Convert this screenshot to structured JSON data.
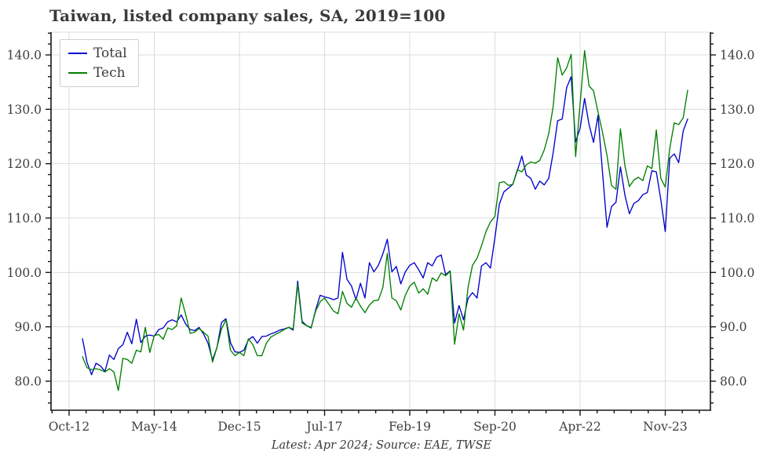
{
  "title": "Taiwan, listed company sales, SA, 2019=100",
  "caption": "Latest: Apr 2024; Source: EAE, TWSE",
  "legend": [
    {
      "label": "Total",
      "color": "#0000cd"
    },
    {
      "label": "Tech",
      "color": "#008000"
    }
  ],
  "colors": {
    "grid": "#dcdcdc",
    "spine": "#16161d",
    "tick_label": "#3d3d3d",
    "total_line": "#0000cd",
    "tech_line": "#008000"
  },
  "chart_data": {
    "type": "line",
    "title": "Taiwan, listed company sales, SA, 2019=100",
    "x_axis": {
      "freq": "monthly",
      "start": "Jan-2013",
      "end": "Apr-2024",
      "major_tick_labels": [
        "Oct-12",
        "May-14",
        "Dec-15",
        "Jul-17",
        "Feb-19",
        "Sep-20",
        "Apr-22",
        "Nov-23"
      ],
      "major_tick_months": [
        0,
        19,
        38,
        57,
        76,
        95,
        114,
        133
      ],
      "minor_tick_step_months": 3.8
    },
    "y_axis": {
      "major_ticks": [
        80,
        90,
        100,
        110,
        120,
        130,
        140
      ],
      "major_tick_labels": [
        "80.0",
        "90.0",
        "100.0",
        "110.0",
        "120.0",
        "130.0",
        "140.0"
      ],
      "minor_tick_step": 2,
      "range": [
        74.7,
        144.2
      ],
      "labels_on_both_sides": true,
      "grid": true
    },
    "legend_position": "upper-left",
    "series": [
      {
        "name": "Total",
        "color": "#0000cd",
        "start_month_offset": 3,
        "values": [
          87.8,
          83.5,
          81.2,
          83.3,
          82.8,
          81.8,
          84.8,
          84.0,
          86.0,
          86.7,
          89.0,
          86.9,
          91.4,
          87.1,
          88.3,
          88.5,
          88.3,
          89.5,
          89.8,
          90.9,
          91.3,
          90.9,
          92.2,
          90.5,
          89.5,
          89.3,
          89.9,
          88.7,
          87.0,
          83.9,
          86.2,
          90.8,
          91.5,
          87.1,
          85.4,
          85.3,
          85.7,
          87.6,
          88.2,
          87.0,
          88.2,
          88.3,
          88.7,
          89.0,
          89.4,
          89.6,
          89.9,
          89.4,
          98.4,
          91.0,
          90.2,
          89.8,
          93.1,
          95.8,
          95.5,
          95.3,
          95.0,
          95.3,
          103.7,
          98.7,
          97.5,
          95.0,
          98.0,
          95.3,
          101.8,
          100.1,
          101.3,
          103.4,
          106.1,
          100.1,
          101.1,
          97.9,
          100.1,
          101.3,
          101.8,
          100.5,
          99.0,
          101.8,
          101.2,
          102.8,
          103.2,
          99.6,
          100.3,
          90.7,
          93.9,
          91.3,
          95.2,
          96.3,
          95.3,
          101.2,
          101.8,
          100.8,
          106.4,
          112.6,
          114.8,
          115.5,
          116.2,
          118.7,
          121.4,
          117.9,
          117.3,
          115.3,
          116.8,
          116.1,
          117.3,
          122.0,
          127.9,
          128.2,
          134.0,
          136.0,
          124.0,
          126.5,
          132.0,
          127.2,
          123.9,
          128.9,
          118.5,
          108.3,
          112.1,
          112.9,
          119.4,
          114.2,
          110.8,
          112.7,
          113.2,
          114.3,
          114.7,
          118.7,
          118.5,
          113.4,
          107.5,
          121.0,
          121.8,
          120.2,
          126.0,
          128.2
        ]
      },
      {
        "name": "Tech",
        "color": "#008000",
        "start_month_offset": 3,
        "values": [
          84.5,
          82.5,
          82.1,
          82.3,
          82.1,
          81.7,
          82.3,
          81.7,
          78.3,
          84.2,
          84.0,
          83.3,
          85.7,
          85.4,
          89.9,
          85.3,
          88.4,
          88.6,
          87.7,
          89.8,
          89.5,
          90.2,
          95.3,
          92.3,
          88.8,
          89.0,
          89.7,
          89.0,
          88.3,
          83.5,
          86.2,
          89.6,
          91.3,
          85.7,
          84.7,
          85.3,
          84.7,
          87.8,
          86.7,
          84.7,
          84.7,
          87.0,
          88.1,
          88.6,
          89.0,
          89.5,
          89.9,
          89.6,
          97.8,
          90.7,
          90.2,
          89.9,
          92.9,
          94.6,
          95.3,
          94.1,
          92.9,
          92.4,
          96.5,
          94.3,
          93.6,
          95.3,
          93.8,
          92.6,
          94.0,
          94.8,
          94.9,
          97.2,
          103.5,
          95.3,
          94.8,
          93.1,
          95.8,
          97.5,
          98.2,
          96.2,
          97.0,
          96.0,
          99.0,
          98.4,
          99.9,
          99.4,
          100.2,
          86.8,
          92.4,
          89.4,
          97.2,
          101.3,
          102.6,
          104.9,
          107.5,
          109.3,
          110.3,
          116.5,
          116.7,
          116.0,
          116.2,
          118.9,
          118.5,
          119.8,
          120.3,
          120.1,
          120.6,
          122.5,
          125.5,
          130.5,
          139.5,
          136.3,
          137.6,
          140.1,
          121.3,
          131.0,
          140.8,
          134.3,
          133.4,
          129.5,
          125.8,
          121.5,
          116.0,
          115.3,
          126.4,
          119.6,
          115.8,
          117.0,
          117.5,
          116.9,
          119.6,
          119.1,
          126.2,
          117.3,
          115.7,
          122.8,
          127.5,
          127.2,
          128.4,
          133.5
        ]
      }
    ]
  }
}
